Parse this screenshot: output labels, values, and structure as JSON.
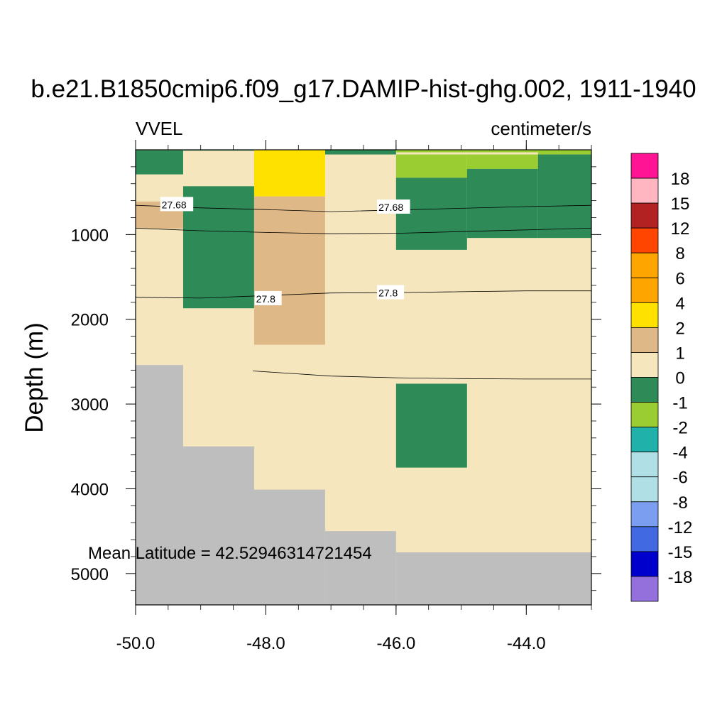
{
  "title": "b.e21.B1850cmip6.f09_g17.DAMIP-hist-ghg.002, 1911-1940",
  "left_label": "VVEL",
  "right_label": "centimeter/s",
  "annotation": "Mean Latitude = 42.52946314721454",
  "chart_data": {
    "type": "heatmap",
    "xlim": [
      -50.0,
      -43.0
    ],
    "ylim": [
      0,
      5370
    ],
    "y_reversed": true,
    "ylabel": "Depth (m)",
    "xlabel": "",
    "x_ticks": [
      -50.0,
      -48.0,
      -46.0,
      -44.0
    ],
    "x_tick_labels": [
      "-50.0",
      "-48.0",
      "-46.0",
      "-44.0"
    ],
    "y_ticks": [
      1000,
      2000,
      3000,
      4000,
      5000
    ],
    "y_tick_labels": [
      "1000",
      "2000",
      "3000",
      "4000",
      "5000"
    ],
    "background_color": "#f5e6be",
    "land_color": "#bebebe",
    "cells": [
      {
        "x0": -50.0,
        "x1": -49.27,
        "y0": 0,
        "y1": 10,
        "color": "#2e8b57"
      },
      {
        "x0": -49.27,
        "x1": -48.18,
        "y0": 0,
        "y1": 10,
        "color": "#2e8b57"
      },
      {
        "x0": -48.18,
        "x1": -47.09,
        "y0": 0,
        "y1": 10,
        "color": "#2e8b57"
      },
      {
        "x0": -47.09,
        "x1": -46.0,
        "y0": 0,
        "y1": 55,
        "color": "#2e8b57"
      },
      {
        "x0": -46.0,
        "x1": -44.91,
        "y0": 0,
        "y1": 30,
        "color": "#9acd32"
      },
      {
        "x0": -44.91,
        "x1": -43.82,
        "y0": 0,
        "y1": 30,
        "color": "#9acd32"
      },
      {
        "x0": -43.82,
        "x1": -43.0,
        "y0": 0,
        "y1": 55,
        "color": "#9acd32"
      },
      {
        "x0": -50.0,
        "x1": -49.27,
        "y0": 10,
        "y1": 290,
        "color": "#2e8b57"
      },
      {
        "x0": -48.18,
        "x1": -47.09,
        "y0": 0,
        "y1": 550,
        "color": "#ffe100"
      },
      {
        "x0": -46.0,
        "x1": -44.91,
        "y0": 55,
        "y1": 330,
        "color": "#9acd32"
      },
      {
        "x0": -44.91,
        "x1": -43.82,
        "y0": 55,
        "y1": 225,
        "color": "#9acd32"
      },
      {
        "x0": -43.82,
        "x1": -43.0,
        "y0": 55,
        "y1": 1040,
        "color": "#2e8b57"
      },
      {
        "x0": -44.91,
        "x1": -43.82,
        "y0": 225,
        "y1": 1040,
        "color": "#2e8b57"
      },
      {
        "x0": -46.0,
        "x1": -44.91,
        "y0": 330,
        "y1": 1180,
        "color": "#2e8b57"
      },
      {
        "x0": -49.27,
        "x1": -48.18,
        "y0": 430,
        "y1": 1870,
        "color": "#2e8b57"
      },
      {
        "x0": -48.18,
        "x1": -47.09,
        "y0": 550,
        "y1": 2300,
        "color": "#deb887"
      },
      {
        "x0": -50.0,
        "x1": -49.27,
        "y0": 610,
        "y1": 930,
        "color": "#deb887"
      },
      {
        "x0": -46.0,
        "x1": -44.91,
        "y0": 2760,
        "y1": 3750,
        "color": "#2e8b57"
      },
      {
        "x0": -50.0,
        "x1": -49.27,
        "y0": 2540,
        "y1": 5370,
        "color": "#bebebe"
      },
      {
        "x0": -49.27,
        "x1": -48.18,
        "y0": 3500,
        "y1": 5370,
        "color": "#bebebe"
      },
      {
        "x0": -48.18,
        "x1": -47.09,
        "y0": 4010,
        "y1": 5370,
        "color": "#bebebe"
      },
      {
        "x0": -47.09,
        "x1": -46.0,
        "y0": 4500,
        "y1": 5370,
        "color": "#bebebe"
      },
      {
        "x0": -46.0,
        "x1": -43.0,
        "y0": 4750,
        "y1": 5370,
        "color": "#bebebe"
      }
    ],
    "contours": [
      {
        "points": [
          [
            -50.0,
            655
          ],
          [
            -49.0,
            685
          ],
          [
            -48.0,
            705
          ],
          [
            -47.0,
            730
          ],
          [
            -46.0,
            710
          ],
          [
            -45.0,
            690
          ],
          [
            -44.0,
            670
          ],
          [
            -43.0,
            655
          ]
        ]
      },
      {
        "points": [
          [
            -50.0,
            925
          ],
          [
            -49.0,
            955
          ],
          [
            -48.0,
            975
          ],
          [
            -47.0,
            990
          ],
          [
            -46.0,
            985
          ],
          [
            -45.0,
            965
          ],
          [
            -44.0,
            945
          ],
          [
            -43.0,
            925
          ]
        ]
      },
      {
        "points": [
          [
            -50.0,
            1740
          ],
          [
            -49.0,
            1750
          ],
          [
            -48.0,
            1720
          ],
          [
            -47.0,
            1690
          ],
          [
            -46.0,
            1685
          ],
          [
            -45.0,
            1675
          ],
          [
            -44.0,
            1665
          ],
          [
            -43.0,
            1665
          ]
        ]
      },
      {
        "points": [
          [
            -48.2,
            2610
          ],
          [
            -47.0,
            2670
          ],
          [
            -46.0,
            2690
          ],
          [
            -45.0,
            2700
          ],
          [
            -44.0,
            2705
          ],
          [
            -43.0,
            2705
          ]
        ]
      }
    ],
    "contour_labels": [
      {
        "x": -49.6,
        "y": 640,
        "text": "27.68"
      },
      {
        "x": -46.27,
        "y": 670,
        "text": "27.68"
      },
      {
        "x": -48.15,
        "y": 1750,
        "text": "27.8"
      },
      {
        "x": -46.27,
        "y": 1680,
        "text": "27.8"
      }
    ],
    "colorbar": {
      "colors": [
        "#ff1493",
        "#ffb6c1",
        "#b22222",
        "#ff4500",
        "#ffa500",
        "#ffa500",
        "#ffe100",
        "#deb887",
        "#f5e6be",
        "#2e8b57",
        "#9acd32",
        "#20b2aa",
        "#b0e0e6",
        "#b0e0e6",
        "#7b9ef0",
        "#4169e1",
        "#0000cd",
        "#9370db"
      ],
      "labels": [
        "18",
        "15",
        "12",
        "8",
        "6",
        "4",
        "2",
        "1",
        "0",
        "-1",
        "-2",
        "-4",
        "-6",
        "-8",
        "-12",
        "-15",
        "-18"
      ]
    }
  }
}
